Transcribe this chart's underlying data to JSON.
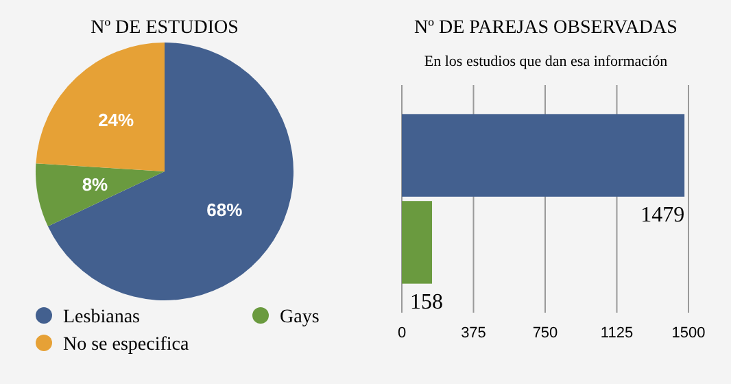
{
  "chart_data": [
    {
      "type": "pie",
      "title": "Nº DE ESTUDIOS",
      "categories": [
        "Lesbianas",
        "Gays",
        "No se especifica"
      ],
      "values": [
        68,
        8,
        24
      ],
      "colors": [
        "#43608f",
        "#6a9a3f",
        "#e6a136"
      ],
      "value_labels": [
        "68%",
        "8%",
        "24%"
      ],
      "legend": "bottom"
    },
    {
      "type": "bar",
      "title": "Nº DE PAREJAS  OBSERVADAS",
      "subtitle": "En los estudios que dan esa información",
      "orientation": "horizontal",
      "categories": [
        null,
        null
      ],
      "values": [
        1479,
        158
      ],
      "colors": [
        "#43608f",
        "#6a9a3f"
      ],
      "xlim": [
        0,
        1500
      ],
      "xticks": [
        0,
        375,
        750,
        1125,
        1500
      ],
      "grid": "x",
      "data_labels": true
    }
  ]
}
